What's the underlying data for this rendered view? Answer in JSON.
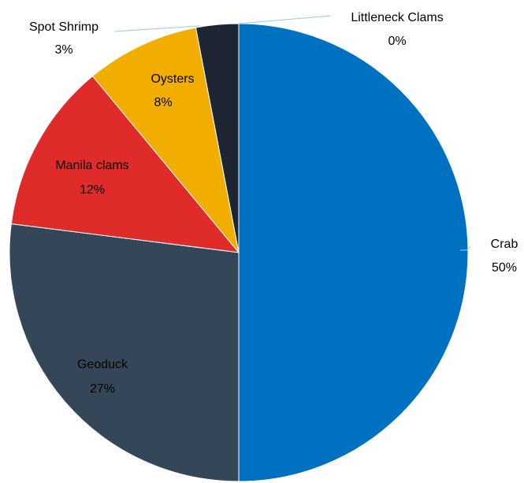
{
  "chart_data": {
    "type": "pie",
    "title": "",
    "slices": [
      {
        "label": "Crab",
        "value": 50,
        "pct_label": "50%",
        "color": "#0070c0"
      },
      {
        "label": "Geoduck",
        "value": 27,
        "pct_label": "27%",
        "color": "#344657"
      },
      {
        "label": "Manila clams",
        "value": 12,
        "pct_label": "12%",
        "color": "#e02b2b"
      },
      {
        "label": "Oysters",
        "value": 8,
        "pct_label": "8%",
        "color": "#f2ae00"
      },
      {
        "label": "Spot Shrimp",
        "value": 3,
        "pct_label": "3%",
        "color": "#1f2633"
      },
      {
        "label": "Littleneck Clams",
        "value": 0,
        "pct_label": "0%",
        "color": "#4472c4"
      }
    ],
    "start": "12 o'clock",
    "direction": "clockwise",
    "data_labels": "category and percentage",
    "legend": "none"
  }
}
